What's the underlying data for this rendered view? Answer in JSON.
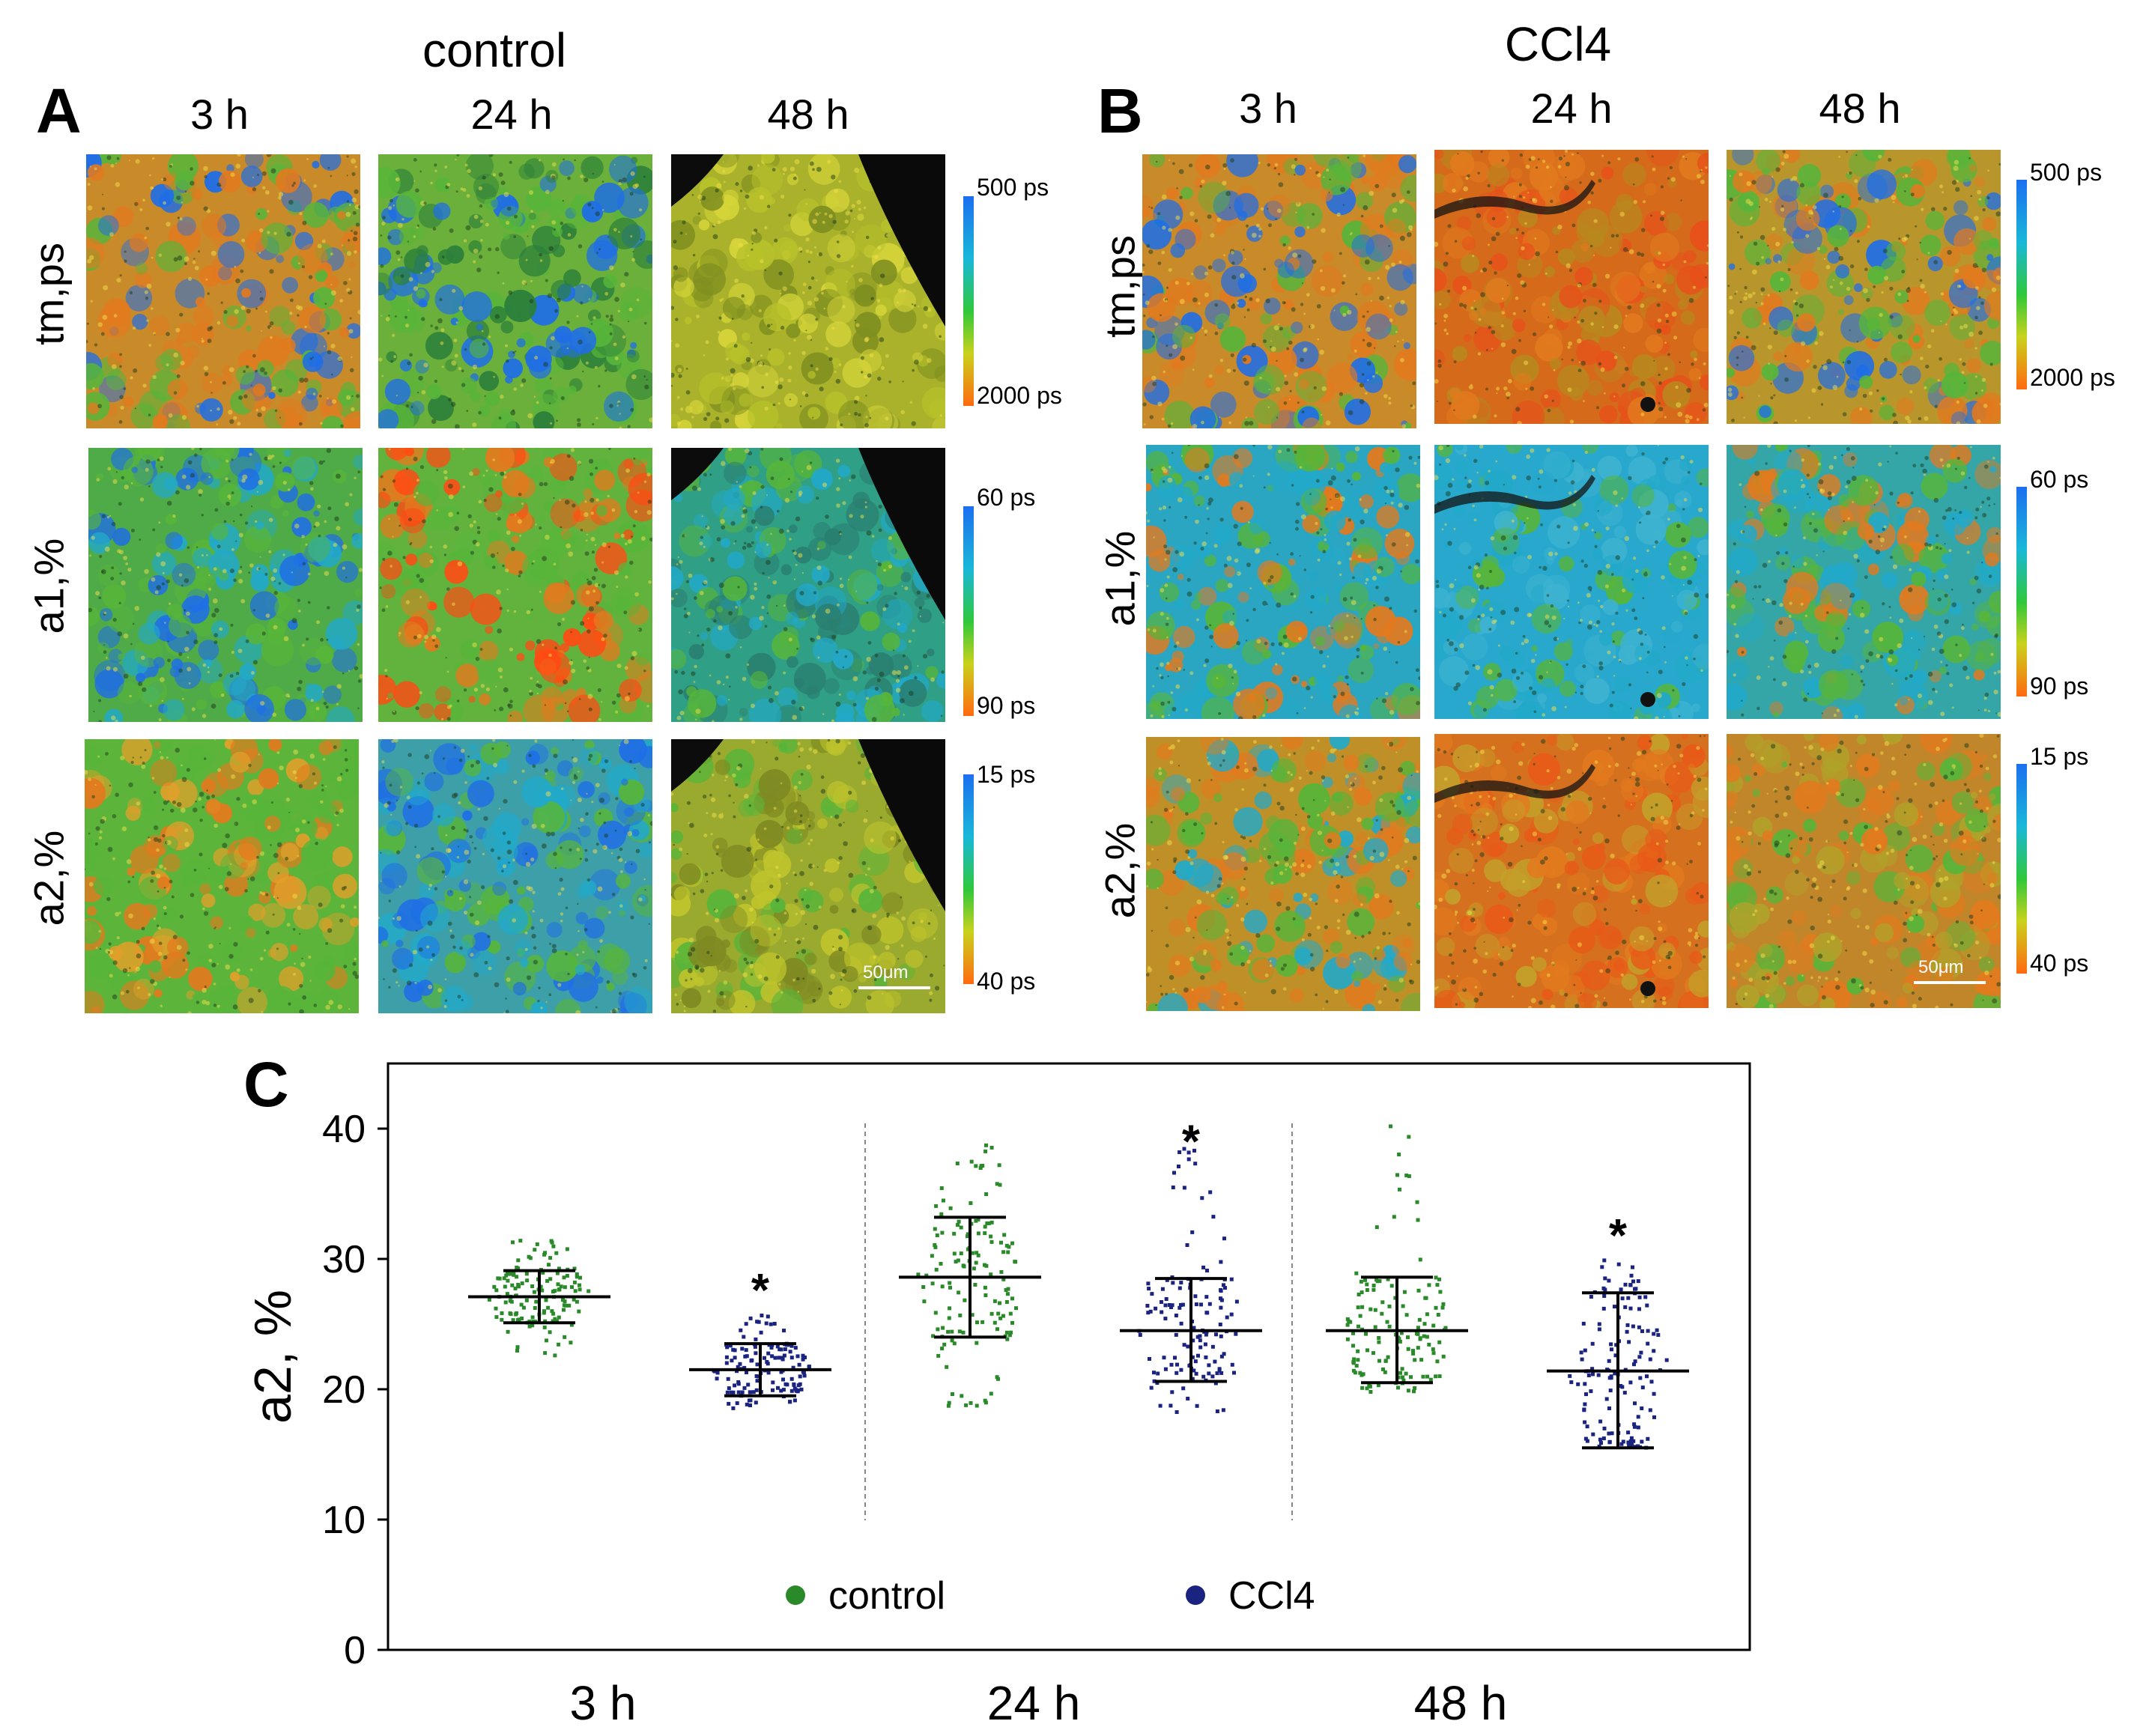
{
  "panels": {
    "A": {
      "letter": "A",
      "title": "control",
      "columns": [
        "3 h",
        "24 h",
        "48 h"
      ],
      "rows": [
        "tm,ps",
        "a1,%",
        "a2,%"
      ],
      "colorbars": [
        {
          "top": "500 ps",
          "bottom": "2000 ps"
        },
        {
          "top": "60 ps",
          "bottom": "90 ps"
        },
        {
          "top": "15 ps",
          "bottom": "40 ps"
        }
      ],
      "scale_bar": "50μm"
    },
    "B": {
      "letter": "B",
      "title": "CCl4",
      "columns": [
        "3 h",
        "24 h",
        "48 h"
      ],
      "rows": [
        "tm,ps",
        "a1,%",
        "a2,%"
      ],
      "colorbars": [
        {
          "top": "500 ps",
          "bottom": "2000 ps"
        },
        {
          "top": "60 ps",
          "bottom": "90 ps"
        },
        {
          "top": "15 ps",
          "bottom": "40 ps"
        }
      ],
      "scale_bar": "50μm"
    },
    "C": {
      "letter": "C"
    }
  },
  "colors": {
    "control": "#2a8a2a",
    "ccl4": "#1a2480",
    "tile_orange": "#e27a1e",
    "tile_green": "#57b53a",
    "tile_blue": "#1f6ee6",
    "tile_cyan": "#22a9c9",
    "tile_yellow": "#b8c22a"
  },
  "chart_data": {
    "type": "scatter",
    "ylabel": "a2, %",
    "ylim": [
      0,
      45
    ],
    "yticks": [
      0,
      10,
      20,
      30,
      40
    ],
    "categories": [
      "3 h",
      "24 h",
      "48 h"
    ],
    "legend": [
      "control",
      "CCl4"
    ],
    "legend_position": "bottom-center",
    "series": [
      {
        "name": "control",
        "color": "#2a8a2a",
        "groups": [
          {
            "category": "3 h",
            "mean": 27.1,
            "sd_low": 25.1,
            "sd_high": 29.1,
            "min": 22.5,
            "max": 31.5,
            "significant": false
          },
          {
            "category": "24 h",
            "mean": 28.6,
            "sd_low": 24.0,
            "sd_high": 33.2,
            "min": 18.5,
            "max": 38.8,
            "significant": false
          },
          {
            "category": "48 h",
            "mean": 24.5,
            "sd_low": 20.5,
            "sd_high": 28.6,
            "min": 19.8,
            "max": 41.0,
            "significant": false
          }
        ]
      },
      {
        "name": "CCl4",
        "color": "#1a2480",
        "groups": [
          {
            "category": "3 h",
            "mean": 21.5,
            "sd_low": 19.5,
            "sd_high": 23.5,
            "min": 18.5,
            "max": 25.8,
            "significant": true
          },
          {
            "category": "24 h",
            "mean": 24.5,
            "sd_low": 20.6,
            "sd_high": 28.5,
            "min": 18.2,
            "max": 39.5,
            "significant": true
          },
          {
            "category": "48 h",
            "mean": 21.4,
            "sd_low": 15.5,
            "sd_high": 27.4,
            "min": 16.2,
            "max": 30.0,
            "significant": true
          }
        ]
      }
    ],
    "significance_marker": "*"
  }
}
